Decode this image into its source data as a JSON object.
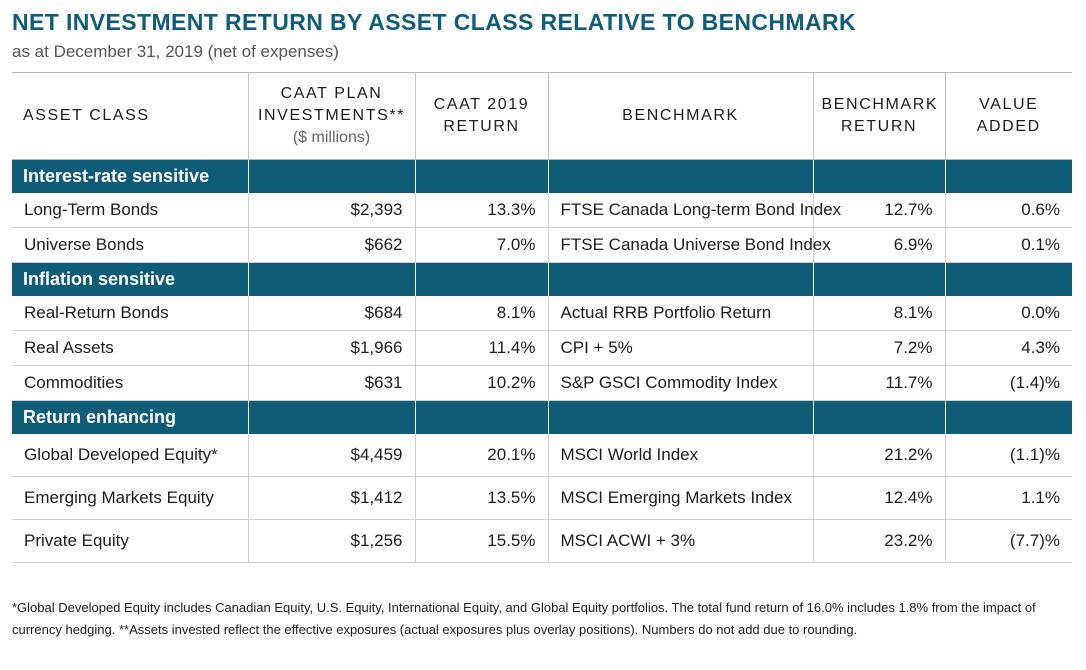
{
  "title": "NET INVESTMENT RETURN BY ASSET CLASS RELATIVE TO BENCHMARK",
  "subtitle": "as at December 31, 2019 (net of expenses)",
  "headers": {
    "asset_class": "ASSET CLASS",
    "investments": "CAAT PLAN INVESTMENTS**",
    "investments_unit": "($ millions)",
    "return": "CAAT 2019 RETURN",
    "benchmark": "BENCHMARK",
    "benchmark_return": "BENCHMARK RETURN",
    "value_added": "VALUE ADDED"
  },
  "sections": [
    {
      "name": "Interest-rate sensitive",
      "rows": [
        {
          "asset": "Long-Term Bonds",
          "investments": "$2,393",
          "return": "13.3%",
          "benchmark": "FTSE Canada Long-term Bond Index",
          "benchmark_return": "12.7%",
          "value_added": "0.6%"
        },
        {
          "asset": "Universe Bonds",
          "investments": "$662",
          "return": "7.0%",
          "benchmark": "FTSE Canada Universe Bond Index",
          "benchmark_return": "6.9%",
          "value_added": "0.1%"
        }
      ]
    },
    {
      "name": "Inflation sensitive",
      "rows": [
        {
          "asset": "Real-Return Bonds",
          "investments": "$684",
          "return": "8.1%",
          "benchmark": "Actual RRB Portfolio Return",
          "benchmark_return": "8.1%",
          "value_added": "0.0%"
        },
        {
          "asset": "Real Assets",
          "investments": "$1,966",
          "return": "11.4%",
          "benchmark": "CPI + 5%",
          "benchmark_return": "7.2%",
          "value_added": "4.3%"
        },
        {
          "asset": "Commodities",
          "investments": "$631",
          "return": "10.2%",
          "benchmark": "S&P GSCI Commodity Index",
          "benchmark_return": "11.7%",
          "value_added": "(1.4)%"
        }
      ]
    },
    {
      "name": "Return enhancing",
      "rows": [
        {
          "asset": "Global Developed Equity*",
          "investments": "$4,459",
          "return": "20.1%",
          "benchmark": "MSCI World Index",
          "benchmark_return": "21.2%",
          "value_added": "(1.1)%"
        },
        {
          "asset": "Emerging Markets Equity",
          "investments": "$1,412",
          "return": "13.5%",
          "benchmark": "MSCI Emerging Markets Index",
          "benchmark_return": "12.4%",
          "value_added": "1.1%"
        },
        {
          "asset": "Private Equity",
          "investments": "$1,256",
          "return": "15.5%",
          "benchmark": "MSCI ACWI + 3%",
          "benchmark_return": "23.2%",
          "value_added": "(7.7)%"
        }
      ]
    }
  ],
  "footnote": "*Global Developed Equity includes Canadian Equity, U.S. Equity, International Equity, and Global Equity portfolios. The total fund return of 16.0% includes 1.8% from the impact of currency hedging. **Assets invested reflect the effective exposures (actual exposures plus overlay positions). Numbers do not add due to rounding."
}
